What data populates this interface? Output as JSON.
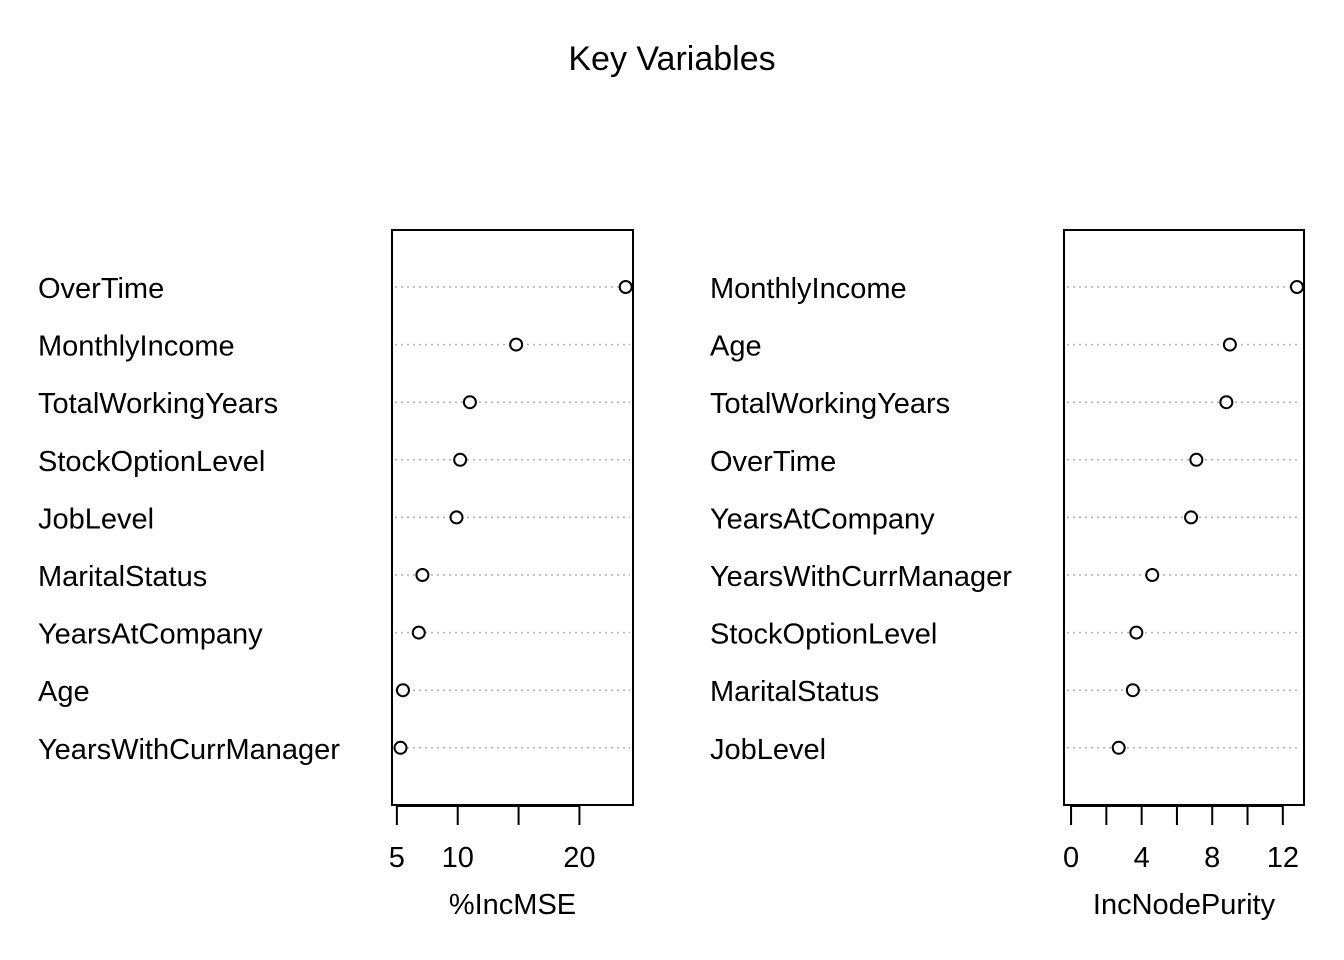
{
  "chart_data": [
    {
      "type": "scatter",
      "title": "Key Variables",
      "xlabel": "%IncMSE",
      "ylabel": "",
      "xlim": [
        4.6,
        24.4
      ],
      "xticks": [
        5,
        10,
        15,
        20
      ],
      "xtick_labels": [
        "5",
        "10",
        "",
        "20"
      ],
      "grid": "horizontal dotted",
      "categories": [
        "OverTime",
        "MonthlyIncome",
        "TotalWorkingYears",
        "StockOptionLevel",
        "JobLevel",
        "MaritalStatus",
        "YearsAtCompany",
        "Age",
        "YearsWithCurrManager"
      ],
      "values": [
        23.8,
        14.8,
        11.0,
        10.2,
        9.9,
        7.1,
        6.8,
        5.5,
        5.3
      ]
    },
    {
      "type": "scatter",
      "xlabel": "IncNodePurity",
      "ylabel": "",
      "xlim": [
        -0.4,
        13.2
      ],
      "xticks": [
        0,
        2,
        4,
        6,
        8,
        10,
        12
      ],
      "xtick_labels": [
        "0",
        "",
        "4",
        "",
        "8",
        "",
        "12"
      ],
      "grid": "horizontal dotted",
      "categories": [
        "MonthlyIncome",
        "Age",
        "TotalWorkingYears",
        "OverTime",
        "YearsAtCompany",
        "YearsWithCurrManager",
        "StockOptionLevel",
        "MaritalStatus",
        "JobLevel"
      ],
      "values": [
        12.8,
        9.0,
        8.8,
        7.1,
        6.8,
        4.6,
        3.7,
        3.5,
        2.7
      ]
    }
  ]
}
